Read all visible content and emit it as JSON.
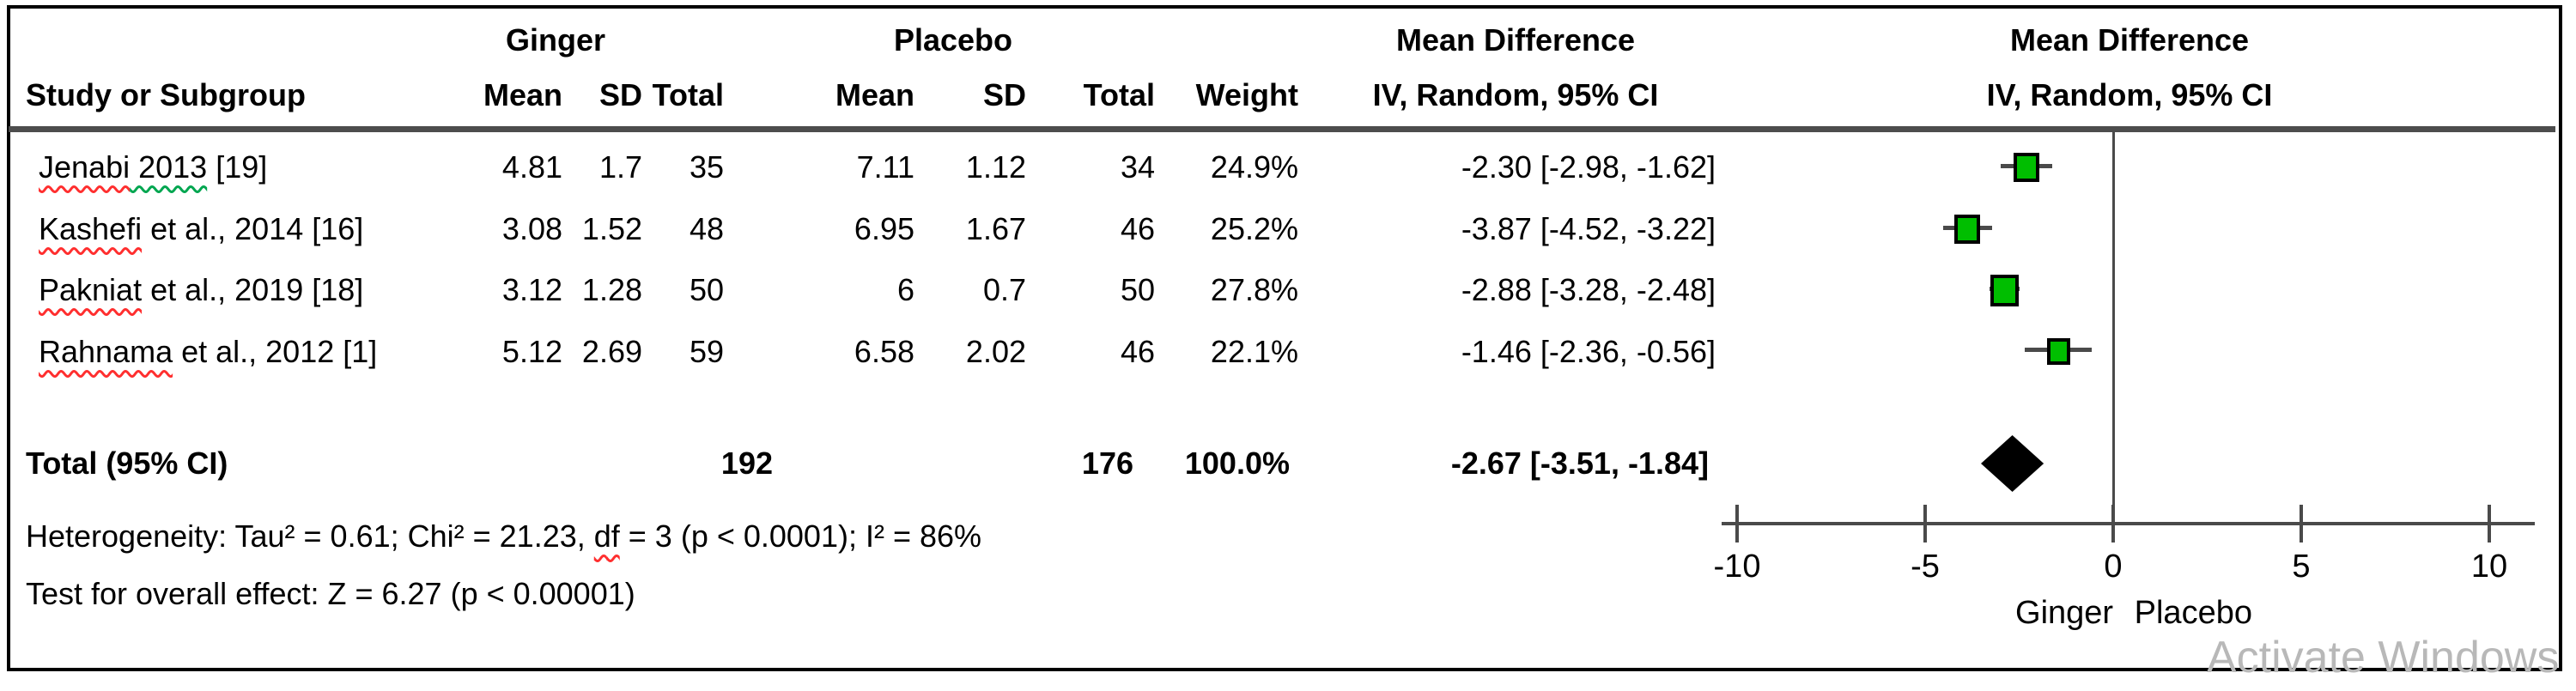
{
  "table": {
    "group1_header": "Ginger",
    "group2_header": "Placebo",
    "md_col_header_line1": "Mean Difference",
    "md_col_header_line2": "IV, Random,  95% CI",
    "md_plot_header_line1": "Mean Difference",
    "md_plot_header_line2": "IV, Random,  95% CI",
    "col_headers": {
      "study": "Study or Subgroup",
      "mean": "Mean",
      "sd": "SD",
      "total": "Total",
      "weight": "Weight"
    },
    "rows": [
      {
        "study_name": "Jenabi",
        "study_mid": " 2013",
        "study_rest": " [19]",
        "g_mean": "4.81",
        "g_sd": "1.7",
        "g_total": "35",
        "p_mean": "7.11",
        "p_sd": "1.12",
        "p_total": "34",
        "weight": "24.9%",
        "md_ci": "-2.30 [-2.98, -1.62]"
      },
      {
        "study_name": "Kashefi",
        "study_mid": "",
        "study_rest": " et al., 2014 [16]",
        "g_mean": "3.08",
        "g_sd": "1.52",
        "g_total": "48",
        "p_mean": "6.95",
        "p_sd": "1.67",
        "p_total": "46",
        "weight": "25.2%",
        "md_ci": "-3.87 [-4.52, -3.22]"
      },
      {
        "study_name": "Pakniat",
        "study_mid": "",
        "study_rest": " et al., 2019 [18]",
        "g_mean": "3.12",
        "g_sd": "1.28",
        "g_total": "50",
        "p_mean": "6",
        "p_sd": "0.7",
        "p_total": "50",
        "weight": "27.8%",
        "md_ci": "-2.88 [-3.28, -2.48]"
      },
      {
        "study_name": "Rahnama",
        "study_mid": "",
        "study_rest": " et al., 2012 [1]",
        "g_mean": "5.12",
        "g_sd": "2.69",
        "g_total": "59",
        "p_mean": "6.58",
        "p_sd": "2.02",
        "p_total": "46",
        "weight": "22.1%",
        "md_ci": "-1.46 [-2.36, -0.56]"
      }
    ],
    "total": {
      "label": "Total (95% CI)",
      "g_total": "192",
      "p_total": "176",
      "weight": "100.0%",
      "md_ci": "-2.67 [-3.51, -1.84]"
    }
  },
  "footer": {
    "heterogeneity_prefix": "Heterogeneity: Tau² = 0.61; Chi² = 21.23, ",
    "heterogeneity_df": "df",
    "heterogeneity_suffix": " = 3 (p < 0.0001); I² = 86%",
    "overall_effect": "Test for overall effect: Z = 6.27 (p < 0.00001)"
  },
  "watermark": "Activate Windows",
  "chart_data": {
    "type": "forest",
    "effect_measure": "Mean Difference, IV, Random, 95% CI",
    "axis_ticks": [
      -10,
      -5,
      0,
      5,
      10
    ],
    "xlim": [
      -10.4,
      11.2
    ],
    "favours_left": "Ginger",
    "favours_right": "Placebo",
    "marker_color": "#00be00",
    "studies": [
      {
        "name": "Jenabi 2013 [19]",
        "md": -2.3,
        "ci_low": -2.98,
        "ci_high": -1.62,
        "weight_pct": 24.9
      },
      {
        "name": "Kashefi et al., 2014 [16]",
        "md": -3.87,
        "ci_low": -4.52,
        "ci_high": -3.22,
        "weight_pct": 25.2
      },
      {
        "name": "Pakniat et al., 2019 [18]",
        "md": -2.88,
        "ci_low": -3.28,
        "ci_high": -2.48,
        "weight_pct": 27.8
      },
      {
        "name": "Rahnama et al., 2012 [1]",
        "md": -1.46,
        "ci_low": -2.36,
        "ci_high": -0.56,
        "weight_pct": 22.1
      }
    ],
    "total": {
      "md": -2.67,
      "ci_low": -3.51,
      "ci_high": -1.84,
      "weight_pct": 100.0
    }
  }
}
